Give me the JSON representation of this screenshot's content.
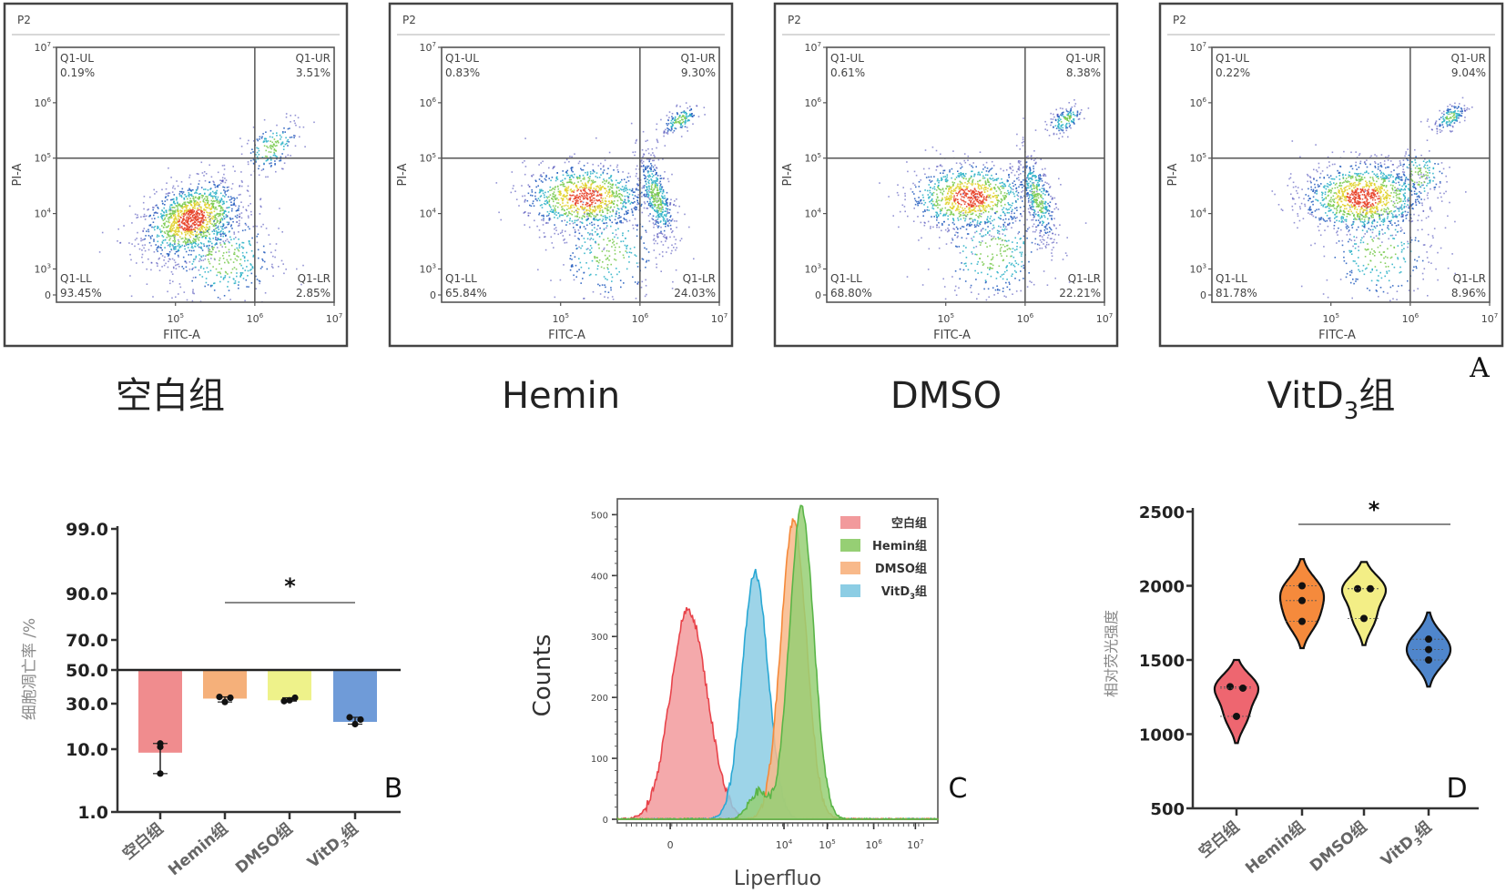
{
  "figure_labels": {
    "A": "A",
    "B": "B",
    "C": "C",
    "D": "D"
  },
  "chart_data": [
    {
      "type": "scatter",
      "panel": "A",
      "description": "Flow cytometry Annexin V-FITC / PI quadrant plots",
      "gate_label": "P2",
      "xlabel": "FITC-A",
      "ylabel": "PI-A",
      "x_ticks": [
        "10^5",
        "10^6",
        "10^7"
      ],
      "y_ticks": [
        "0",
        "10^3",
        "10^4",
        "10^5",
        "10^6",
        "10^7"
      ],
      "quadrant_names": {
        "UL": "Q1-UL",
        "UR": "Q1-UR",
        "LL": "Q1-LL",
        "LR": "Q1-LR"
      },
      "groups": [
        {
          "name": "空白组",
          "name_main": "空白组",
          "sub": "",
          "suffix": "",
          "UL": "0.19%",
          "UR": "3.51%",
          "LL": "93.45%",
          "LR": "2.85%",
          "clusters": [
            {
              "x": 5.2,
              "y": 3.9,
              "sx": 0.35,
              "sy": 0.35,
              "n": 2600,
              "rot": 0.5
            },
            {
              "x": 6.2,
              "y": 5.2,
              "sx": 0.25,
              "sy": 0.25,
              "n": 350,
              "rot": 0.8
            },
            {
              "x": 5.6,
              "y": 3.2,
              "sx": 0.35,
              "sy": 0.45,
              "n": 700,
              "rot": 0
            }
          ]
        },
        {
          "name": "Hemin组",
          "name_main": "Hemin",
          "sub": "",
          "suffix": "组",
          "UL": "0.83%",
          "UR": "9.30%",
          "LL": "65.84%",
          "LR": "24.03%",
          "clusters": [
            {
              "x": 5.3,
              "y": 4.3,
              "sx": 0.38,
              "sy": 0.3,
              "n": 2000,
              "rot": 0
            },
            {
              "x": 6.2,
              "y": 4.3,
              "sx": 0.1,
              "sy": 0.5,
              "n": 900,
              "rot": 0.6
            },
            {
              "x": 6.5,
              "y": 5.7,
              "sx": 0.15,
              "sy": 0.12,
              "n": 300,
              "rot": 0.7
            },
            {
              "x": 5.6,
              "y": 3.3,
              "sx": 0.35,
              "sy": 0.45,
              "n": 600,
              "rot": 0
            }
          ]
        },
        {
          "name": "DMSO组",
          "name_main": "DMSO",
          "sub": "",
          "suffix": "组",
          "UL": "0.61%",
          "UR": "8.38%",
          "LL": "68.80%",
          "LR": "22.21%",
          "clusters": [
            {
              "x": 5.3,
              "y": 4.3,
              "sx": 0.38,
              "sy": 0.3,
              "n": 2000,
              "rot": 0
            },
            {
              "x": 6.15,
              "y": 4.3,
              "sx": 0.1,
              "sy": 0.5,
              "n": 800,
              "rot": 0.6
            },
            {
              "x": 6.5,
              "y": 5.7,
              "sx": 0.15,
              "sy": 0.12,
              "n": 300,
              "rot": 0.7
            },
            {
              "x": 5.6,
              "y": 3.3,
              "sx": 0.35,
              "sy": 0.45,
              "n": 600,
              "rot": 0
            }
          ]
        },
        {
          "name": "VitD3组",
          "name_main": "VitD",
          "sub": "3",
          "suffix": "组",
          "UL": "0.22%",
          "UR": "9.04%",
          "LL": "81.78%",
          "LR": "8.96%",
          "clusters": [
            {
              "x": 5.4,
              "y": 4.3,
              "sx": 0.38,
              "sy": 0.32,
              "n": 2400,
              "rot": 0
            },
            {
              "x": 6.5,
              "y": 5.75,
              "sx": 0.13,
              "sy": 0.12,
              "n": 300,
              "rot": 0.7
            },
            {
              "x": 6.1,
              "y": 4.7,
              "sx": 0.2,
              "sy": 0.3,
              "n": 300,
              "rot": 0.5
            },
            {
              "x": 5.6,
              "y": 3.3,
              "sx": 0.35,
              "sy": 0.45,
              "n": 500,
              "rot": 0
            }
          ]
        }
      ]
    },
    {
      "type": "bar",
      "panel": "B",
      "title": "",
      "xlabel": "",
      "ylabel": "细胞凋亡率 /%",
      "categories": [
        "空白组",
        "Hemin组",
        "DMSO组",
        "VitD3组"
      ],
      "category_parts": [
        [
          "空白组",
          ""
        ],
        [
          "Hemin组",
          ""
        ],
        [
          "DMSO组",
          ""
        ],
        [
          "VitD",
          "3",
          "组"
        ]
      ],
      "baseline": 50.0,
      "y_ticks": [
        1.0,
        10.0,
        30.0,
        50.0,
        70.0,
        90.0,
        99.0
      ],
      "y_tick_labels": [
        "1.0",
        "10.0",
        "30.0",
        "50.0",
        "70.0",
        "90.0",
        "99.0"
      ],
      "ylim": [
        1.0,
        99.0
      ],
      "values": [
        9.5,
        33.0,
        32.0,
        22.0
      ],
      "points": [
        [
          12.5,
          11.0,
          6.5
        ],
        [
          34.0,
          33.5,
          31.0
        ],
        [
          31.5,
          33.5,
          32.0
        ],
        [
          24.0,
          23.0,
          21.0
        ]
      ],
      "colors": [
        "#f08c8e",
        "#f5b07a",
        "#eef28a",
        "#6f9bd8"
      ],
      "significance": {
        "from": 1,
        "to": 3,
        "label": "*"
      }
    },
    {
      "type": "area",
      "panel": "C",
      "xlabel": "Liperfluo",
      "ylabel": "Counts",
      "x_tick_labels": [
        "0",
        "10^4",
        "10^5",
        "10^6",
        "10^7"
      ],
      "y_ticks": [
        0,
        100,
        200,
        300,
        400,
        500
      ],
      "ylim": [
        0,
        520
      ],
      "legend_position": "top-right",
      "series": [
        {
          "name": "空白组",
          "label_main": "空白组",
          "label_sub": "",
          "label_suffix": "",
          "color": "#e8434a",
          "fill": "#f29a9c",
          "peak_x": 0.22,
          "peak": 340,
          "width": 0.055
        },
        {
          "name": "Hemin组",
          "label_main": "Hemin组",
          "label_sub": "",
          "label_suffix": "",
          "color": "#5ab548",
          "fill": "#96cf74",
          "peak_x": 0.575,
          "peak": 510,
          "width": 0.038
        },
        {
          "name": "DMSO组",
          "label_main": "DMSO组",
          "label_sub": "",
          "label_suffix": "",
          "color": "#f5893a",
          "fill": "#f8b98a",
          "peak_x": 0.55,
          "peak": 490,
          "width": 0.04
        },
        {
          "name": "VitD3组",
          "label_main": "VitD",
          "label_sub": "3",
          "label_suffix": "组",
          "color": "#2aa8d4",
          "fill": "#8ccde4",
          "peak_x": 0.43,
          "peak": 405,
          "width": 0.04
        }
      ]
    },
    {
      "type": "violin",
      "panel": "D",
      "xlabel": "",
      "ylabel": "相对荧光强度",
      "categories": [
        "空白组",
        "Hemin组",
        "DMSO组",
        "VitD3组"
      ],
      "category_parts": [
        [
          "空白组",
          ""
        ],
        [
          "Hemin组",
          ""
        ],
        [
          "DMSO组",
          ""
        ],
        [
          "VitD",
          "3",
          "组"
        ]
      ],
      "y_ticks": [
        500,
        1000,
        1500,
        2000,
        2500
      ],
      "ylim": [
        500,
        2500
      ],
      "points": [
        [
          1320,
          1310,
          1120
        ],
        [
          2000,
          1900,
          1760
        ],
        [
          1980,
          1980,
          1780
        ],
        [
          1640,
          1570,
          1500
        ]
      ],
      "colors": [
        "#ee6670",
        "#f58a3c",
        "#f3ee86",
        "#4f86cc"
      ],
      "significance": {
        "from": 1,
        "to": 3,
        "label": "*"
      }
    }
  ]
}
